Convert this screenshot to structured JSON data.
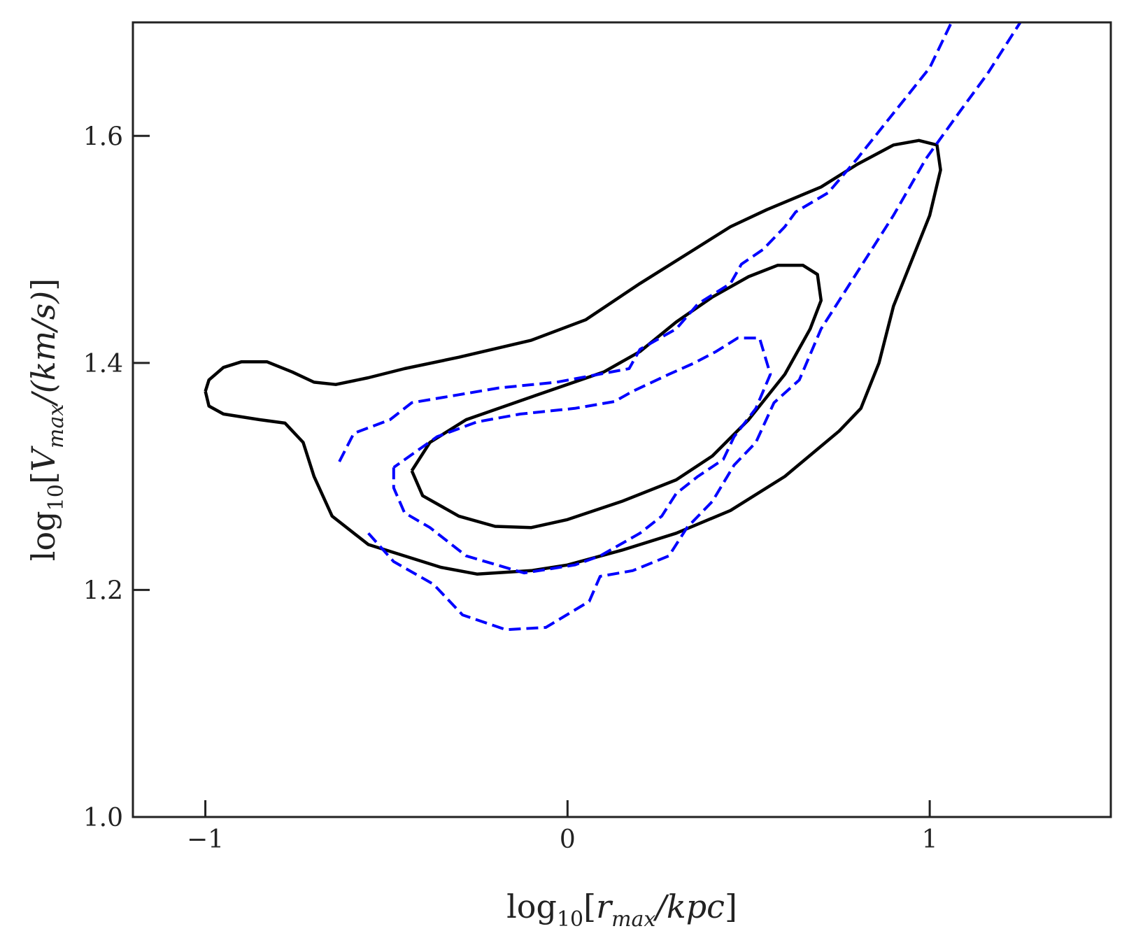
{
  "chart_data": {
    "type": "contour",
    "title": "",
    "xlabel": {
      "prefix": "log",
      "sub": "10",
      "open": "[",
      "var": "r",
      "var_sub": "max",
      "rest": "/kpc",
      "close": "]"
    },
    "ylabel": {
      "prefix": "log",
      "sub": "10",
      "open": "[",
      "var": "V",
      "var_sub": "max",
      "rest": "/(km/s)",
      "close": "]"
    },
    "xlim": [
      -1.2,
      1.5
    ],
    "ylim": [
      1.0,
      1.7
    ],
    "xticks": [
      -1,
      0,
      1
    ],
    "xtick_labels": [
      "−1",
      "0",
      "1"
    ],
    "yticks": [
      1.0,
      1.2,
      1.4,
      1.6
    ],
    "ytick_labels": [
      "1.0",
      "1.2",
      "1.4",
      "1.6"
    ],
    "grid": false,
    "series": [
      {
        "style": "solid",
        "color": "#000000",
        "contours": [
          [
            [
              -1.0,
              1.375
            ],
            [
              -0.99,
              1.385
            ],
            [
              -0.95,
              1.396
            ],
            [
              -0.9,
              1.401
            ],
            [
              -0.83,
              1.401
            ],
            [
              -0.76,
              1.392
            ],
            [
              -0.7,
              1.383
            ],
            [
              -0.64,
              1.381
            ],
            [
              -0.55,
              1.387
            ],
            [
              -0.45,
              1.395
            ],
            [
              -0.3,
              1.405
            ],
            [
              -0.1,
              1.42
            ],
            [
              0.05,
              1.438
            ],
            [
              0.2,
              1.47
            ],
            [
              0.35,
              1.5
            ],
            [
              0.45,
              1.52
            ],
            [
              0.55,
              1.535
            ],
            [
              0.7,
              1.555
            ],
            [
              0.8,
              1.575
            ],
            [
              0.9,
              1.592
            ],
            [
              0.97,
              1.596
            ],
            [
              1.02,
              1.592
            ],
            [
              1.03,
              1.57
            ],
            [
              1.0,
              1.53
            ],
            [
              0.95,
              1.49
            ],
            [
              0.9,
              1.45
            ],
            [
              0.86,
              1.4
            ],
            [
              0.81,
              1.36
            ],
            [
              0.75,
              1.34
            ],
            [
              0.6,
              1.3
            ],
            [
              0.45,
              1.27
            ],
            [
              0.3,
              1.25
            ],
            [
              0.15,
              1.235
            ],
            [
              0.0,
              1.222
            ],
            [
              -0.1,
              1.217
            ],
            [
              -0.25,
              1.214
            ],
            [
              -0.35,
              1.22
            ],
            [
              -0.55,
              1.24
            ],
            [
              -0.65,
              1.265
            ],
            [
              -0.7,
              1.3
            ],
            [
              -0.73,
              1.33
            ],
            [
              -0.78,
              1.347
            ],
            [
              -0.85,
              1.35
            ],
            [
              -0.95,
              1.355
            ],
            [
              -0.99,
              1.362
            ],
            [
              -1.0,
              1.375
            ]
          ],
          [
            [
              -0.43,
              1.305
            ],
            [
              -0.38,
              1.33
            ],
            [
              -0.28,
              1.35
            ],
            [
              -0.1,
              1.37
            ],
            [
              0.1,
              1.392
            ],
            [
              0.2,
              1.41
            ],
            [
              0.3,
              1.436
            ],
            [
              0.4,
              1.458
            ],
            [
              0.5,
              1.476
            ],
            [
              0.58,
              1.486
            ],
            [
              0.65,
              1.486
            ],
            [
              0.69,
              1.478
            ],
            [
              0.7,
              1.455
            ],
            [
              0.67,
              1.43
            ],
            [
              0.6,
              1.39
            ],
            [
              0.5,
              1.35
            ],
            [
              0.4,
              1.318
            ],
            [
              0.3,
              1.297
            ],
            [
              0.15,
              1.278
            ],
            [
              0.0,
              1.262
            ],
            [
              -0.1,
              1.255
            ],
            [
              -0.2,
              1.256
            ],
            [
              -0.3,
              1.265
            ],
            [
              -0.4,
              1.283
            ],
            [
              -0.43,
              1.305
            ]
          ]
        ]
      },
      {
        "style": "dashed",
        "color": "#0000ff",
        "contours": [
          [
            [
              -0.63,
              1.313
            ],
            [
              -0.59,
              1.338
            ],
            [
              -0.49,
              1.35
            ],
            [
              -0.43,
              1.365
            ],
            [
              -0.3,
              1.372
            ],
            [
              -0.19,
              1.378
            ],
            [
              -0.03,
              1.383
            ],
            [
              0.17,
              1.395
            ],
            [
              0.2,
              1.412
            ],
            [
              0.3,
              1.43
            ],
            [
              0.36,
              1.452
            ],
            [
              0.45,
              1.47
            ],
            [
              0.48,
              1.487
            ],
            [
              0.54,
              1.5
            ],
            [
              0.6,
              1.52
            ],
            [
              0.63,
              1.533
            ],
            [
              0.72,
              1.55
            ],
            [
              0.8,
              1.58
            ],
            [
              0.9,
              1.62
            ],
            [
              1.0,
              1.66
            ],
            [
              1.06,
              1.7
            ]
          ],
          [
            [
              -0.55,
              1.25
            ],
            [
              -0.48,
              1.225
            ],
            [
              -0.37,
              1.205
            ],
            [
              -0.29,
              1.178
            ],
            [
              -0.17,
              1.165
            ],
            [
              -0.06,
              1.167
            ],
            [
              0.06,
              1.19
            ],
            [
              0.09,
              1.212
            ],
            [
              0.18,
              1.217
            ],
            [
              0.28,
              1.23
            ],
            [
              0.33,
              1.255
            ],
            [
              0.4,
              1.278
            ],
            [
              0.46,
              1.31
            ],
            [
              0.52,
              1.33
            ],
            [
              0.57,
              1.365
            ],
            [
              0.64,
              1.385
            ],
            [
              0.7,
              1.43
            ],
            [
              0.8,
              1.48
            ],
            [
              0.9,
              1.53
            ],
            [
              0.99,
              1.58
            ],
            [
              1.08,
              1.62
            ],
            [
              1.16,
              1.655
            ],
            [
              1.23,
              1.69
            ],
            [
              1.25,
              1.7
            ]
          ],
          [
            [
              -0.48,
              1.308
            ],
            [
              -0.48,
              1.29
            ],
            [
              -0.45,
              1.268
            ],
            [
              -0.38,
              1.255
            ],
            [
              -0.28,
              1.23
            ],
            [
              -0.12,
              1.215
            ],
            [
              0.02,
              1.222
            ],
            [
              0.09,
              1.23
            ],
            [
              0.2,
              1.25
            ],
            [
              0.26,
              1.265
            ],
            [
              0.3,
              1.285
            ],
            [
              0.36,
              1.3
            ],
            [
              0.43,
              1.315
            ],
            [
              0.46,
              1.335
            ],
            [
              0.52,
              1.36
            ],
            [
              0.56,
              1.39
            ],
            [
              0.53,
              1.422
            ],
            [
              0.47,
              1.422
            ],
            [
              0.41,
              1.41
            ],
            [
              0.35,
              1.4
            ],
            [
              0.28,
              1.39
            ],
            [
              0.18,
              1.375
            ],
            [
              0.13,
              1.366
            ],
            [
              0.02,
              1.36
            ],
            [
              -0.13,
              1.355
            ],
            [
              -0.25,
              1.348
            ],
            [
              -0.36,
              1.335
            ],
            [
              -0.48,
              1.308
            ]
          ]
        ]
      }
    ]
  }
}
